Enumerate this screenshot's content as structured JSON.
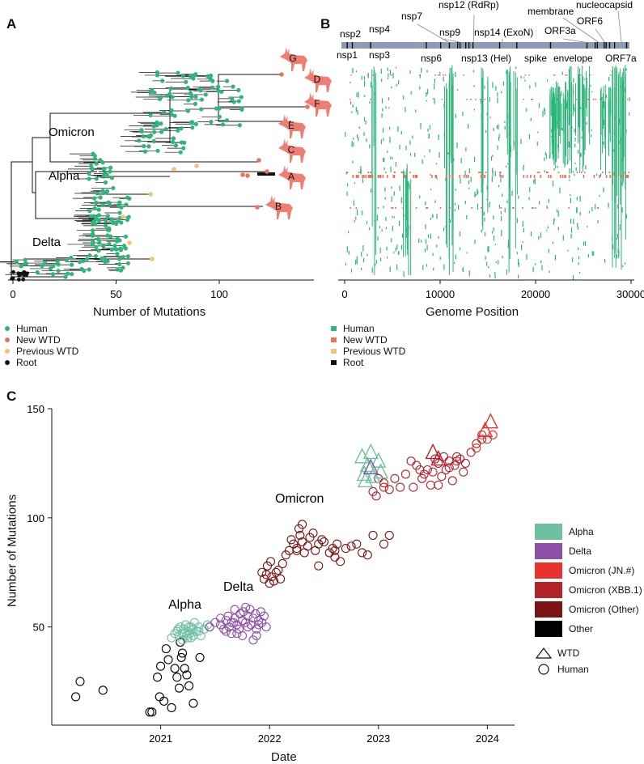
{
  "figure": {
    "panel_a": "A",
    "panel_b": "B",
    "panel_c": "C"
  },
  "tree": {
    "xlabel": "Number of Mutations",
    "ticks": [
      "0",
      "50",
      "100"
    ],
    "tick_values": [
      0,
      50,
      100
    ],
    "clades": [
      "Omicron",
      "Alpha",
      "Delta"
    ],
    "deer_labels": [
      "G",
      "D",
      "F",
      "E",
      "C",
      "A",
      "B"
    ],
    "legend": [
      {
        "label": "Human",
        "color": "#2db57a"
      },
      {
        "label": "New WTD",
        "color": "#e8735e"
      },
      {
        "label": "Previous WTD",
        "color": "#f0c27a"
      },
      {
        "label": "Root",
        "color": "#111111"
      }
    ]
  },
  "genome": {
    "xlabel": "Genome Position",
    "ticks": [
      "0",
      "10000",
      "20000",
      "30000"
    ],
    "tick_values": [
      0,
      10000,
      20000,
      30000
    ],
    "genes_top": [
      "nsp2",
      "nsp4",
      "nsp7",
      "nsp12 (RdRp)",
      "nsp9",
      "nsp14 (ExoN)",
      "ORF3a",
      "membrane",
      "ORF6",
      "nucleocapsid"
    ],
    "genes_bottom": [
      "nsp1",
      "nsp3",
      "nsp6",
      "nsp13 (Hel)",
      "spike",
      "envelope",
      "ORF7a"
    ],
    "legend": [
      {
        "label": "Human",
        "color": "#2db57a"
      },
      {
        "label": "New WTD",
        "color": "#e8735e"
      },
      {
        "label": "Previous WTD",
        "color": "#f0c27a"
      },
      {
        "label": "Root",
        "color": "#111111"
      }
    ]
  },
  "chart_data": {
    "type": "scatter",
    "xlabel": "Date",
    "ylabel": "Number of Mutations",
    "xlim": [
      2020.0,
      2024.25
    ],
    "ylim": [
      5,
      150
    ],
    "xticks": [
      "2021",
      "2022",
      "2023",
      "2024"
    ],
    "yticks": [
      "50",
      "100",
      "150"
    ],
    "annotations": [
      "Alpha",
      "Delta",
      "Omicron"
    ],
    "legend_lineage": [
      {
        "label": "Alpha",
        "color": "#6fbfa3"
      },
      {
        "label": "Delta",
        "color": "#8e4fa8"
      },
      {
        "label": "Omicron (JN.#)",
        "color": "#e8322e"
      },
      {
        "label": "Omicron (XBB.1)",
        "color": "#b3232c"
      },
      {
        "label": "Omicron (Other)",
        "color": "#7a1414"
      },
      {
        "label": "Other",
        "color": "#000000"
      }
    ],
    "legend_host": [
      {
        "label": "WTD",
        "shape": "triangle"
      },
      {
        "label": "Human",
        "shape": "circle"
      }
    ],
    "series": [
      {
        "name": "Other",
        "host": "Human",
        "color": "#000000",
        "x": [
          2020.22,
          2020.26,
          2020.47,
          2020.9,
          2020.97,
          2020.99,
          2021.03,
          2021.07,
          2021.1,
          2021.13,
          2021.15,
          2021.17,
          2021.18,
          2021.19,
          2021.2,
          2021.22,
          2021.24,
          2021.26,
          2021.3,
          2021.36,
          2020.92,
          2021.0,
          2021.05
        ],
        "y": [
          18,
          25,
          21,
          11,
          27,
          18,
          16,
          35,
          13,
          31,
          27,
          22,
          43,
          36,
          38,
          31,
          28,
          23,
          15,
          36,
          11,
          32,
          40
        ]
      },
      {
        "name": "Alpha",
        "host": "Human",
        "color": "#6fbfa3",
        "x": [
          2021.1,
          2021.13,
          2021.15,
          2021.17,
          2021.18,
          2021.2,
          2021.21,
          2021.22,
          2021.23,
          2021.24,
          2021.25,
          2021.26,
          2021.27,
          2021.28,
          2021.3,
          2021.31,
          2021.33,
          2021.35,
          2021.37,
          2021.4,
          2021.43,
          2021.45,
          2021.2,
          2021.25,
          2021.3,
          2021.35,
          2021.28,
          2021.16
        ],
        "y": [
          45,
          47,
          48,
          46,
          50,
          44,
          49,
          47,
          51,
          46,
          48,
          50,
          47,
          45,
          49,
          52,
          48,
          50,
          46,
          49,
          51,
          50,
          47,
          45,
          46,
          48,
          50,
          49
        ]
      },
      {
        "name": "Delta",
        "host": "Human",
        "color": "#8e4fa8",
        "x": [
          2021.45,
          2021.5,
          2021.55,
          2021.58,
          2021.6,
          2021.62,
          2021.63,
          2021.65,
          2021.67,
          2021.68,
          2021.7,
          2021.72,
          2021.73,
          2021.75,
          2021.76,
          2021.78,
          2021.8,
          2021.82,
          2021.83,
          2021.85,
          2021.87,
          2021.88,
          2021.9,
          2021.92,
          2021.93,
          2021.95,
          2021.97,
          2021.6,
          2021.7,
          2021.8,
          2021.9,
          2021.85,
          2021.75,
          2021.65,
          2021.55,
          2021.68,
          2021.78,
          2021.88
        ],
        "y": [
          50,
          52,
          51,
          49,
          53,
          55,
          50,
          47,
          52,
          54,
          51,
          49,
          56,
          53,
          57,
          52,
          55,
          58,
          51,
          54,
          56,
          49,
          53,
          57,
          52,
          55,
          50,
          48,
          47,
          50,
          51,
          44,
          46,
          52,
          54,
          58,
          59,
          46
        ]
      },
      {
        "name": "Omicron (Other)",
        "host": "Human",
        "color": "#7a1414",
        "x": [
          2021.93,
          2021.95,
          2021.97,
          2021.98,
          2022.0,
          2022.01,
          2022.02,
          2022.04,
          2022.06,
          2022.08,
          2022.1,
          2022.15,
          2022.18,
          2022.2,
          2022.22,
          2022.25,
          2022.27,
          2022.28,
          2022.3,
          2022.32,
          2022.35,
          2022.37,
          2022.4,
          2022.42,
          2022.45,
          2022.48,
          2022.5,
          2022.55,
          2022.58,
          2022.6,
          2022.62,
          2022.65,
          2022.7,
          2022.75,
          2022.8,
          2022.85,
          2022.9,
          2022.95,
          2023.05,
          2023.1,
          2022.45,
          2022.3,
          2022.25,
          2022.6,
          2022.12
        ],
        "y": [
          75,
          72,
          74,
          78,
          70,
          80,
          73,
          71,
          75,
          76,
          72,
          83,
          85,
          90,
          88,
          86,
          95,
          92,
          89,
          84,
          87,
          91,
          93,
          85,
          88,
          90,
          89,
          84,
          86,
          82,
          88,
          80,
          86,
          87,
          88,
          84,
          83,
          92,
          88,
          92,
          78,
          97,
          85,
          85,
          79
        ]
      },
      {
        "name": "Omicron (XBB.1)",
        "host": "Human",
        "color": "#b3232c",
        "x": [
          2022.95,
          2023.0,
          2023.05,
          2023.1,
          2023.15,
          2023.2,
          2023.25,
          2023.3,
          2023.32,
          2023.35,
          2023.4,
          2023.45,
          2023.48,
          2023.5,
          2023.52,
          2023.55,
          2023.58,
          2023.6,
          2023.62,
          2023.65,
          2023.68,
          2023.7,
          2023.72,
          2023.75,
          2023.78,
          2023.8,
          2023.85,
          2023.9,
          2023.95,
          2023.42,
          2023.38,
          2023.55,
          2023.65,
          2023.72,
          2023.05,
          2022.98
        ],
        "y": [
          112,
          118,
          114,
          113,
          118,
          114,
          120,
          126,
          114,
          124,
          118,
          122,
          115,
          121,
          127,
          125,
          119,
          128,
          122,
          126,
          117,
          124,
          128,
          127,
          121,
          125,
          130,
          134,
          136,
          120,
          122,
          115,
          123,
          126,
          116,
          110
        ]
      },
      {
        "name": "Omicron (JN.#)",
        "host": "Human",
        "color": "#e8322e",
        "x": [
          2023.9,
          2023.95,
          2024.0,
          2024.05
        ],
        "y": [
          132,
          138,
          136,
          138
        ]
      },
      {
        "name": "Alpha",
        "host": "WTD",
        "color": "#6fbfa3",
        "x": [
          2022.85,
          2022.9,
          2022.95,
          2023.0,
          2022.88,
          2022.93,
          2023.02,
          2022.87
        ],
        "y": [
          128,
          124,
          119,
          126,
          117,
          130,
          121,
          120
        ]
      },
      {
        "name": "Delta",
        "host": "WTD",
        "color": "#8e4fa8",
        "x": [
          2022.93
        ],
        "y": [
          123
        ]
      },
      {
        "name": "Omicron (XBB.1)",
        "host": "WTD",
        "color": "#b3232c",
        "x": [
          2023.5,
          2023.55
        ],
        "y": [
          130,
          127
        ]
      },
      {
        "name": "Omicron (JN.#)",
        "host": "WTD",
        "color": "#e8322e",
        "x": [
          2023.98,
          2024.03
        ],
        "y": [
          140,
          144
        ]
      }
    ]
  }
}
